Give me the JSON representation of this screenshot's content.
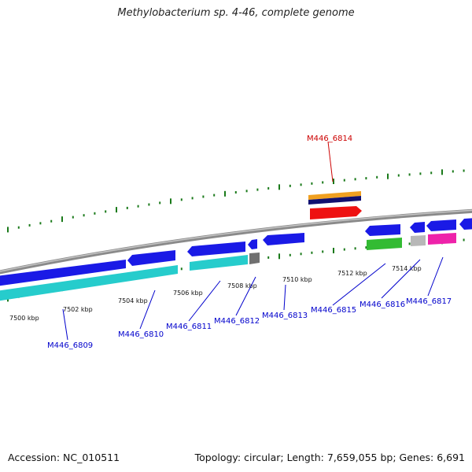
{
  "title": "Methylobacterium sp. 4-46, complete genome",
  "footer": {
    "accession": "Accession: NC_010511",
    "stats": "Topology: circular; Length: 7,659,055 bp; Genes: 6,691"
  },
  "colors": {
    "backbone": "#888888",
    "tick": "#1a7a1a",
    "gene_blue": "#1a1ae6",
    "gene_cyan": "#26cccc",
    "gene_orange": "#f0a020",
    "gene_navy": "#101070",
    "gene_red": "#ee1111",
    "gene_green": "#33bb33",
    "gene_gray": "#b8b8b8",
    "gene_darkgray": "#707070",
    "gene_magenta": "#ee22aa",
    "label_blue": "#0000cc",
    "label_red": "#cc0000"
  },
  "axis_labels": [
    "7500 kbp",
    "7502 kbp",
    "7504 kbp",
    "7506 kbp",
    "7508 kbp",
    "7510 kbp",
    "7512 kbp",
    "7514 kbp"
  ],
  "gene_labels": [
    {
      "text": "M446_6809",
      "color": "label_blue"
    },
    {
      "text": "M446_6810",
      "color": "label_blue"
    },
    {
      "text": "M446_6811",
      "color": "label_blue"
    },
    {
      "text": "M446_6812",
      "color": "label_blue"
    },
    {
      "text": "M446_6813",
      "color": "label_blue"
    },
    {
      "text": "M446_6814",
      "color": "label_red"
    },
    {
      "text": "M446_6815",
      "color": "label_blue"
    },
    {
      "text": "M446_6816",
      "color": "label_blue"
    },
    {
      "text": "M446_6817",
      "color": "label_blue"
    }
  ]
}
